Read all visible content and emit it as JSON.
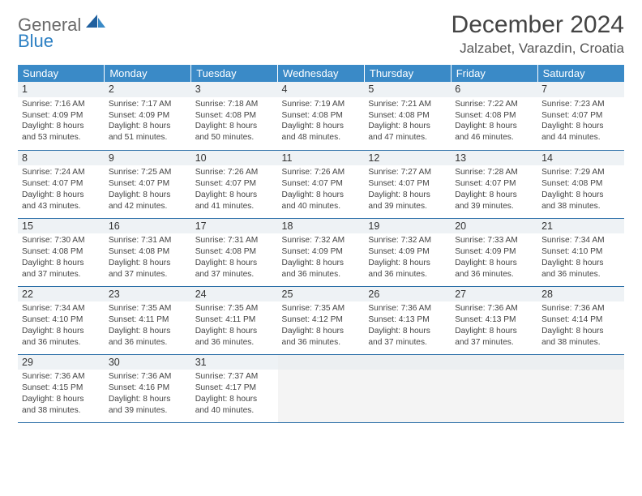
{
  "logo": {
    "line1": "General",
    "line2": "Blue"
  },
  "title": "December 2024",
  "location": "Jalzabet, Varazdin, Croatia",
  "colors": {
    "header_bg": "#3a8ac7",
    "border": "#2b6fa8",
    "logo_gray": "#6a6a6a",
    "logo_blue": "#2b7fc3"
  },
  "day_headers": [
    "Sunday",
    "Monday",
    "Tuesday",
    "Wednesday",
    "Thursday",
    "Friday",
    "Saturday"
  ],
  "weeks": [
    [
      {
        "n": "1",
        "sr": "Sunrise: 7:16 AM",
        "ss": "Sunset: 4:09 PM",
        "d1": "Daylight: 8 hours",
        "d2": "and 53 minutes."
      },
      {
        "n": "2",
        "sr": "Sunrise: 7:17 AM",
        "ss": "Sunset: 4:09 PM",
        "d1": "Daylight: 8 hours",
        "d2": "and 51 minutes."
      },
      {
        "n": "3",
        "sr": "Sunrise: 7:18 AM",
        "ss": "Sunset: 4:08 PM",
        "d1": "Daylight: 8 hours",
        "d2": "and 50 minutes."
      },
      {
        "n": "4",
        "sr": "Sunrise: 7:19 AM",
        "ss": "Sunset: 4:08 PM",
        "d1": "Daylight: 8 hours",
        "d2": "and 48 minutes."
      },
      {
        "n": "5",
        "sr": "Sunrise: 7:21 AM",
        "ss": "Sunset: 4:08 PM",
        "d1": "Daylight: 8 hours",
        "d2": "and 47 minutes."
      },
      {
        "n": "6",
        "sr": "Sunrise: 7:22 AM",
        "ss": "Sunset: 4:08 PM",
        "d1": "Daylight: 8 hours",
        "d2": "and 46 minutes."
      },
      {
        "n": "7",
        "sr": "Sunrise: 7:23 AM",
        "ss": "Sunset: 4:07 PM",
        "d1": "Daylight: 8 hours",
        "d2": "and 44 minutes."
      }
    ],
    [
      {
        "n": "8",
        "sr": "Sunrise: 7:24 AM",
        "ss": "Sunset: 4:07 PM",
        "d1": "Daylight: 8 hours",
        "d2": "and 43 minutes."
      },
      {
        "n": "9",
        "sr": "Sunrise: 7:25 AM",
        "ss": "Sunset: 4:07 PM",
        "d1": "Daylight: 8 hours",
        "d2": "and 42 minutes."
      },
      {
        "n": "10",
        "sr": "Sunrise: 7:26 AM",
        "ss": "Sunset: 4:07 PM",
        "d1": "Daylight: 8 hours",
        "d2": "and 41 minutes."
      },
      {
        "n": "11",
        "sr": "Sunrise: 7:26 AM",
        "ss": "Sunset: 4:07 PM",
        "d1": "Daylight: 8 hours",
        "d2": "and 40 minutes."
      },
      {
        "n": "12",
        "sr": "Sunrise: 7:27 AM",
        "ss": "Sunset: 4:07 PM",
        "d1": "Daylight: 8 hours",
        "d2": "and 39 minutes."
      },
      {
        "n": "13",
        "sr": "Sunrise: 7:28 AM",
        "ss": "Sunset: 4:07 PM",
        "d1": "Daylight: 8 hours",
        "d2": "and 39 minutes."
      },
      {
        "n": "14",
        "sr": "Sunrise: 7:29 AM",
        "ss": "Sunset: 4:08 PM",
        "d1": "Daylight: 8 hours",
        "d2": "and 38 minutes."
      }
    ],
    [
      {
        "n": "15",
        "sr": "Sunrise: 7:30 AM",
        "ss": "Sunset: 4:08 PM",
        "d1": "Daylight: 8 hours",
        "d2": "and 37 minutes."
      },
      {
        "n": "16",
        "sr": "Sunrise: 7:31 AM",
        "ss": "Sunset: 4:08 PM",
        "d1": "Daylight: 8 hours",
        "d2": "and 37 minutes."
      },
      {
        "n": "17",
        "sr": "Sunrise: 7:31 AM",
        "ss": "Sunset: 4:08 PM",
        "d1": "Daylight: 8 hours",
        "d2": "and 37 minutes."
      },
      {
        "n": "18",
        "sr": "Sunrise: 7:32 AM",
        "ss": "Sunset: 4:09 PM",
        "d1": "Daylight: 8 hours",
        "d2": "and 36 minutes."
      },
      {
        "n": "19",
        "sr": "Sunrise: 7:32 AM",
        "ss": "Sunset: 4:09 PM",
        "d1": "Daylight: 8 hours",
        "d2": "and 36 minutes."
      },
      {
        "n": "20",
        "sr": "Sunrise: 7:33 AM",
        "ss": "Sunset: 4:09 PM",
        "d1": "Daylight: 8 hours",
        "d2": "and 36 minutes."
      },
      {
        "n": "21",
        "sr": "Sunrise: 7:34 AM",
        "ss": "Sunset: 4:10 PM",
        "d1": "Daylight: 8 hours",
        "d2": "and 36 minutes."
      }
    ],
    [
      {
        "n": "22",
        "sr": "Sunrise: 7:34 AM",
        "ss": "Sunset: 4:10 PM",
        "d1": "Daylight: 8 hours",
        "d2": "and 36 minutes."
      },
      {
        "n": "23",
        "sr": "Sunrise: 7:35 AM",
        "ss": "Sunset: 4:11 PM",
        "d1": "Daylight: 8 hours",
        "d2": "and 36 minutes."
      },
      {
        "n": "24",
        "sr": "Sunrise: 7:35 AM",
        "ss": "Sunset: 4:11 PM",
        "d1": "Daylight: 8 hours",
        "d2": "and 36 minutes."
      },
      {
        "n": "25",
        "sr": "Sunrise: 7:35 AM",
        "ss": "Sunset: 4:12 PM",
        "d1": "Daylight: 8 hours",
        "d2": "and 36 minutes."
      },
      {
        "n": "26",
        "sr": "Sunrise: 7:36 AM",
        "ss": "Sunset: 4:13 PM",
        "d1": "Daylight: 8 hours",
        "d2": "and 37 minutes."
      },
      {
        "n": "27",
        "sr": "Sunrise: 7:36 AM",
        "ss": "Sunset: 4:13 PM",
        "d1": "Daylight: 8 hours",
        "d2": "and 37 minutes."
      },
      {
        "n": "28",
        "sr": "Sunrise: 7:36 AM",
        "ss": "Sunset: 4:14 PM",
        "d1": "Daylight: 8 hours",
        "d2": "and 38 minutes."
      }
    ],
    [
      {
        "n": "29",
        "sr": "Sunrise: 7:36 AM",
        "ss": "Sunset: 4:15 PM",
        "d1": "Daylight: 8 hours",
        "d2": "and 38 minutes."
      },
      {
        "n": "30",
        "sr": "Sunrise: 7:36 AM",
        "ss": "Sunset: 4:16 PM",
        "d1": "Daylight: 8 hours",
        "d2": "and 39 minutes."
      },
      {
        "n": "31",
        "sr": "Sunrise: 7:37 AM",
        "ss": "Sunset: 4:17 PM",
        "d1": "Daylight: 8 hours",
        "d2": "and 40 minutes."
      },
      {
        "empty": true
      },
      {
        "empty": true
      },
      {
        "empty": true
      },
      {
        "empty": true
      }
    ]
  ]
}
